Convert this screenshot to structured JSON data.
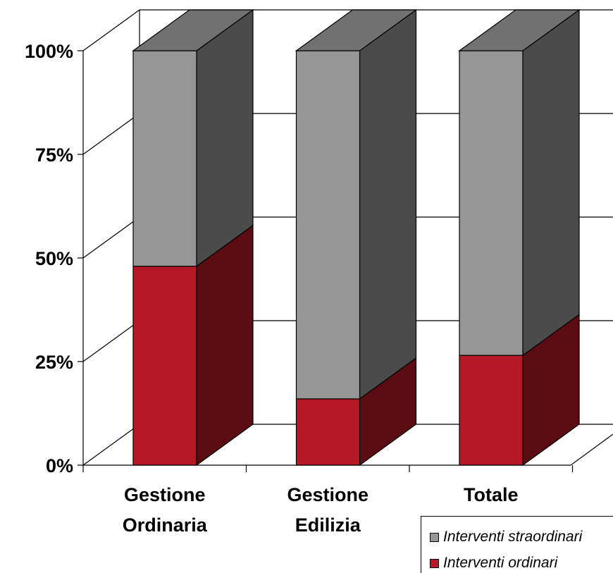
{
  "chart_data": {
    "type": "bar",
    "stacked": true,
    "percent_stacked": true,
    "three_d": true,
    "categories": [
      [
        "Gestione",
        "Ordinaria"
      ],
      [
        "Gestione",
        "Edilizia"
      ],
      [
        "Totale"
      ]
    ],
    "series": [
      {
        "name": "Interventi ordinari",
        "values": [
          48,
          16,
          26.5
        ],
        "color": "#b61825"
      },
      {
        "name": "Interventi straordinari",
        "values": [
          52,
          84,
          73.5
        ],
        "color": "#969696"
      }
    ],
    "yticks": [
      "0%",
      "25%",
      "50%",
      "75%",
      "100%"
    ],
    "ylim": [
      0,
      100
    ],
    "grid": true,
    "legend_position": "bottom-right"
  },
  "legend": {
    "items": [
      {
        "label": "Interventi straordinari",
        "color": "#969696"
      },
      {
        "label": "Interventi ordinari",
        "color": "#b61825"
      }
    ]
  }
}
